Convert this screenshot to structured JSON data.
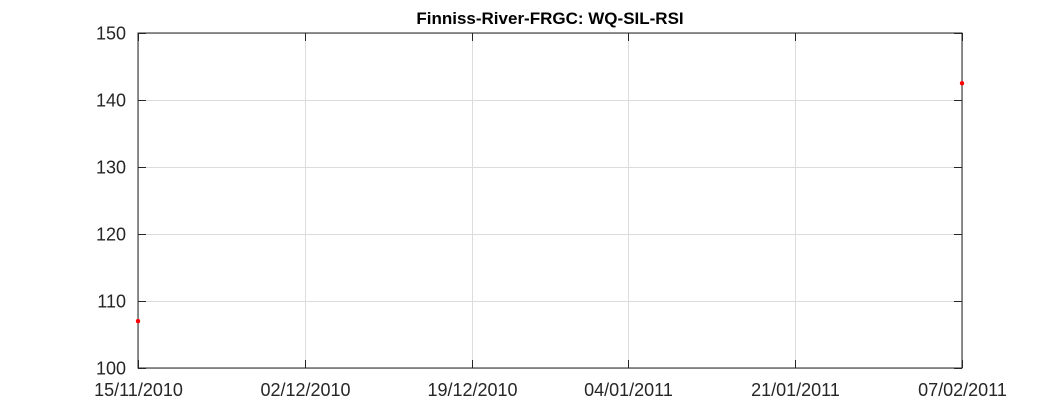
{
  "chart_data": {
    "type": "scatter",
    "title": "Finniss-River-FRGC: WQ-SIL-RSI",
    "xlabel": "",
    "ylabel": "",
    "x_axis_type": "date",
    "x_tick_labels": [
      "15/11/2010",
      "02/12/2010",
      "19/12/2010",
      "04/01/2011",
      "21/01/2011",
      "07/02/2011"
    ],
    "xlim": [
      "15/11/2010",
      "07/02/2011"
    ],
    "ylim": [
      100,
      150
    ],
    "y_ticks": [
      100,
      110,
      120,
      130,
      140,
      150
    ],
    "grid": true,
    "legend": "none",
    "marker_color": "#ff0000",
    "series": [
      {
        "x": [
          "15/11/2010",
          "07/02/2011"
        ],
        "y": [
          107,
          142.5
        ]
      }
    ]
  }
}
